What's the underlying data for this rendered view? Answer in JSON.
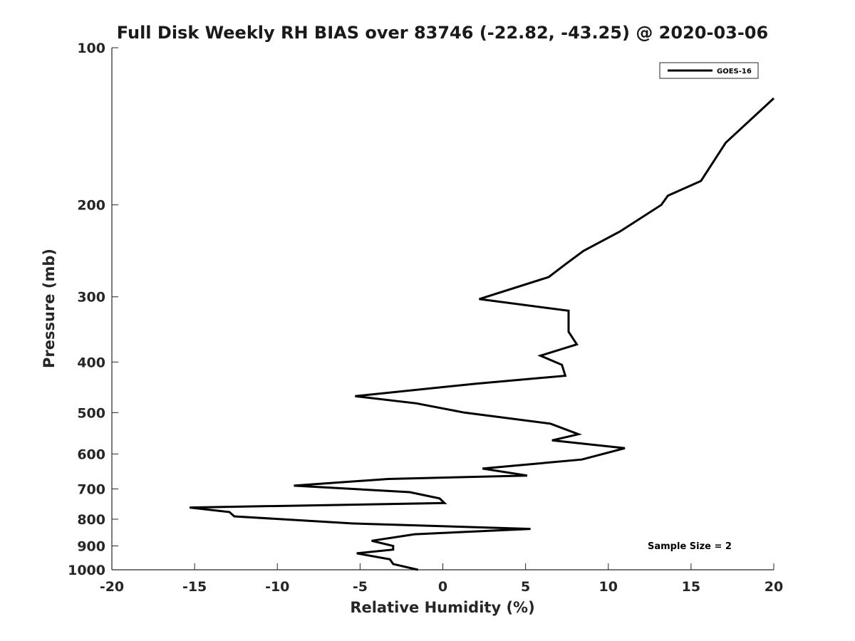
{
  "chart_data": {
    "type": "line",
    "title": "Full Disk Weekly RH BIAS over 83746 (-22.82, -43.25) @ 2020-03-06",
    "xlabel": "Relative Humidity (%)",
    "ylabel": "Pressure (mb)",
    "xlim": [
      -20,
      20
    ],
    "ylim": [
      1000,
      100
    ],
    "y_scale": "log",
    "x_ticks": [
      "-20",
      "-15",
      "-10",
      "-5",
      "0",
      "5",
      "10",
      "15",
      "20"
    ],
    "y_ticks": [
      "100",
      "200",
      "300",
      "400",
      "500",
      "600",
      "700",
      "800",
      "900",
      "1000"
    ],
    "grid": false,
    "legend_position": "top-right",
    "annotation": "Sample Size = 2",
    "series": [
      {
        "name": "GOES-16",
        "color": "#000000",
        "points": [
          [
            20.0,
            125
          ],
          [
            17.1,
            152
          ],
          [
            15.6,
            180
          ],
          [
            13.6,
            192
          ],
          [
            13.2,
            200
          ],
          [
            10.7,
            225
          ],
          [
            8.5,
            245
          ],
          [
            7.4,
            260
          ],
          [
            6.4,
            275
          ],
          [
            2.2,
            303
          ],
          [
            7.6,
            319
          ],
          [
            7.6,
            350
          ],
          [
            8.1,
            370
          ],
          [
            5.9,
            389
          ],
          [
            7.2,
            405
          ],
          [
            7.4,
            425
          ],
          [
            2.0,
            440
          ],
          [
            -5.3,
            465
          ],
          [
            -1.6,
            480
          ],
          [
            1.3,
            500
          ],
          [
            6.5,
            525
          ],
          [
            8.2,
            550
          ],
          [
            6.6,
            565
          ],
          [
            11.0,
            585
          ],
          [
            8.4,
            615
          ],
          [
            2.4,
            640
          ],
          [
            5.1,
            660
          ],
          [
            -3.3,
            670
          ],
          [
            -9.0,
            690
          ],
          [
            -2.0,
            710
          ],
          [
            -0.2,
            730
          ],
          [
            0.1,
            745
          ],
          [
            -15.3,
            760
          ],
          [
            -12.9,
            775
          ],
          [
            -12.6,
            790
          ],
          [
            -5.5,
            815
          ],
          [
            5.3,
            835
          ],
          [
            -1.7,
            855
          ],
          [
            -4.3,
            880
          ],
          [
            -3.0,
            900
          ],
          [
            -3.0,
            915
          ],
          [
            -5.2,
            930
          ],
          [
            -3.2,
            955
          ],
          [
            -3.0,
            975
          ],
          [
            -1.5,
            1000
          ]
        ]
      }
    ]
  }
}
